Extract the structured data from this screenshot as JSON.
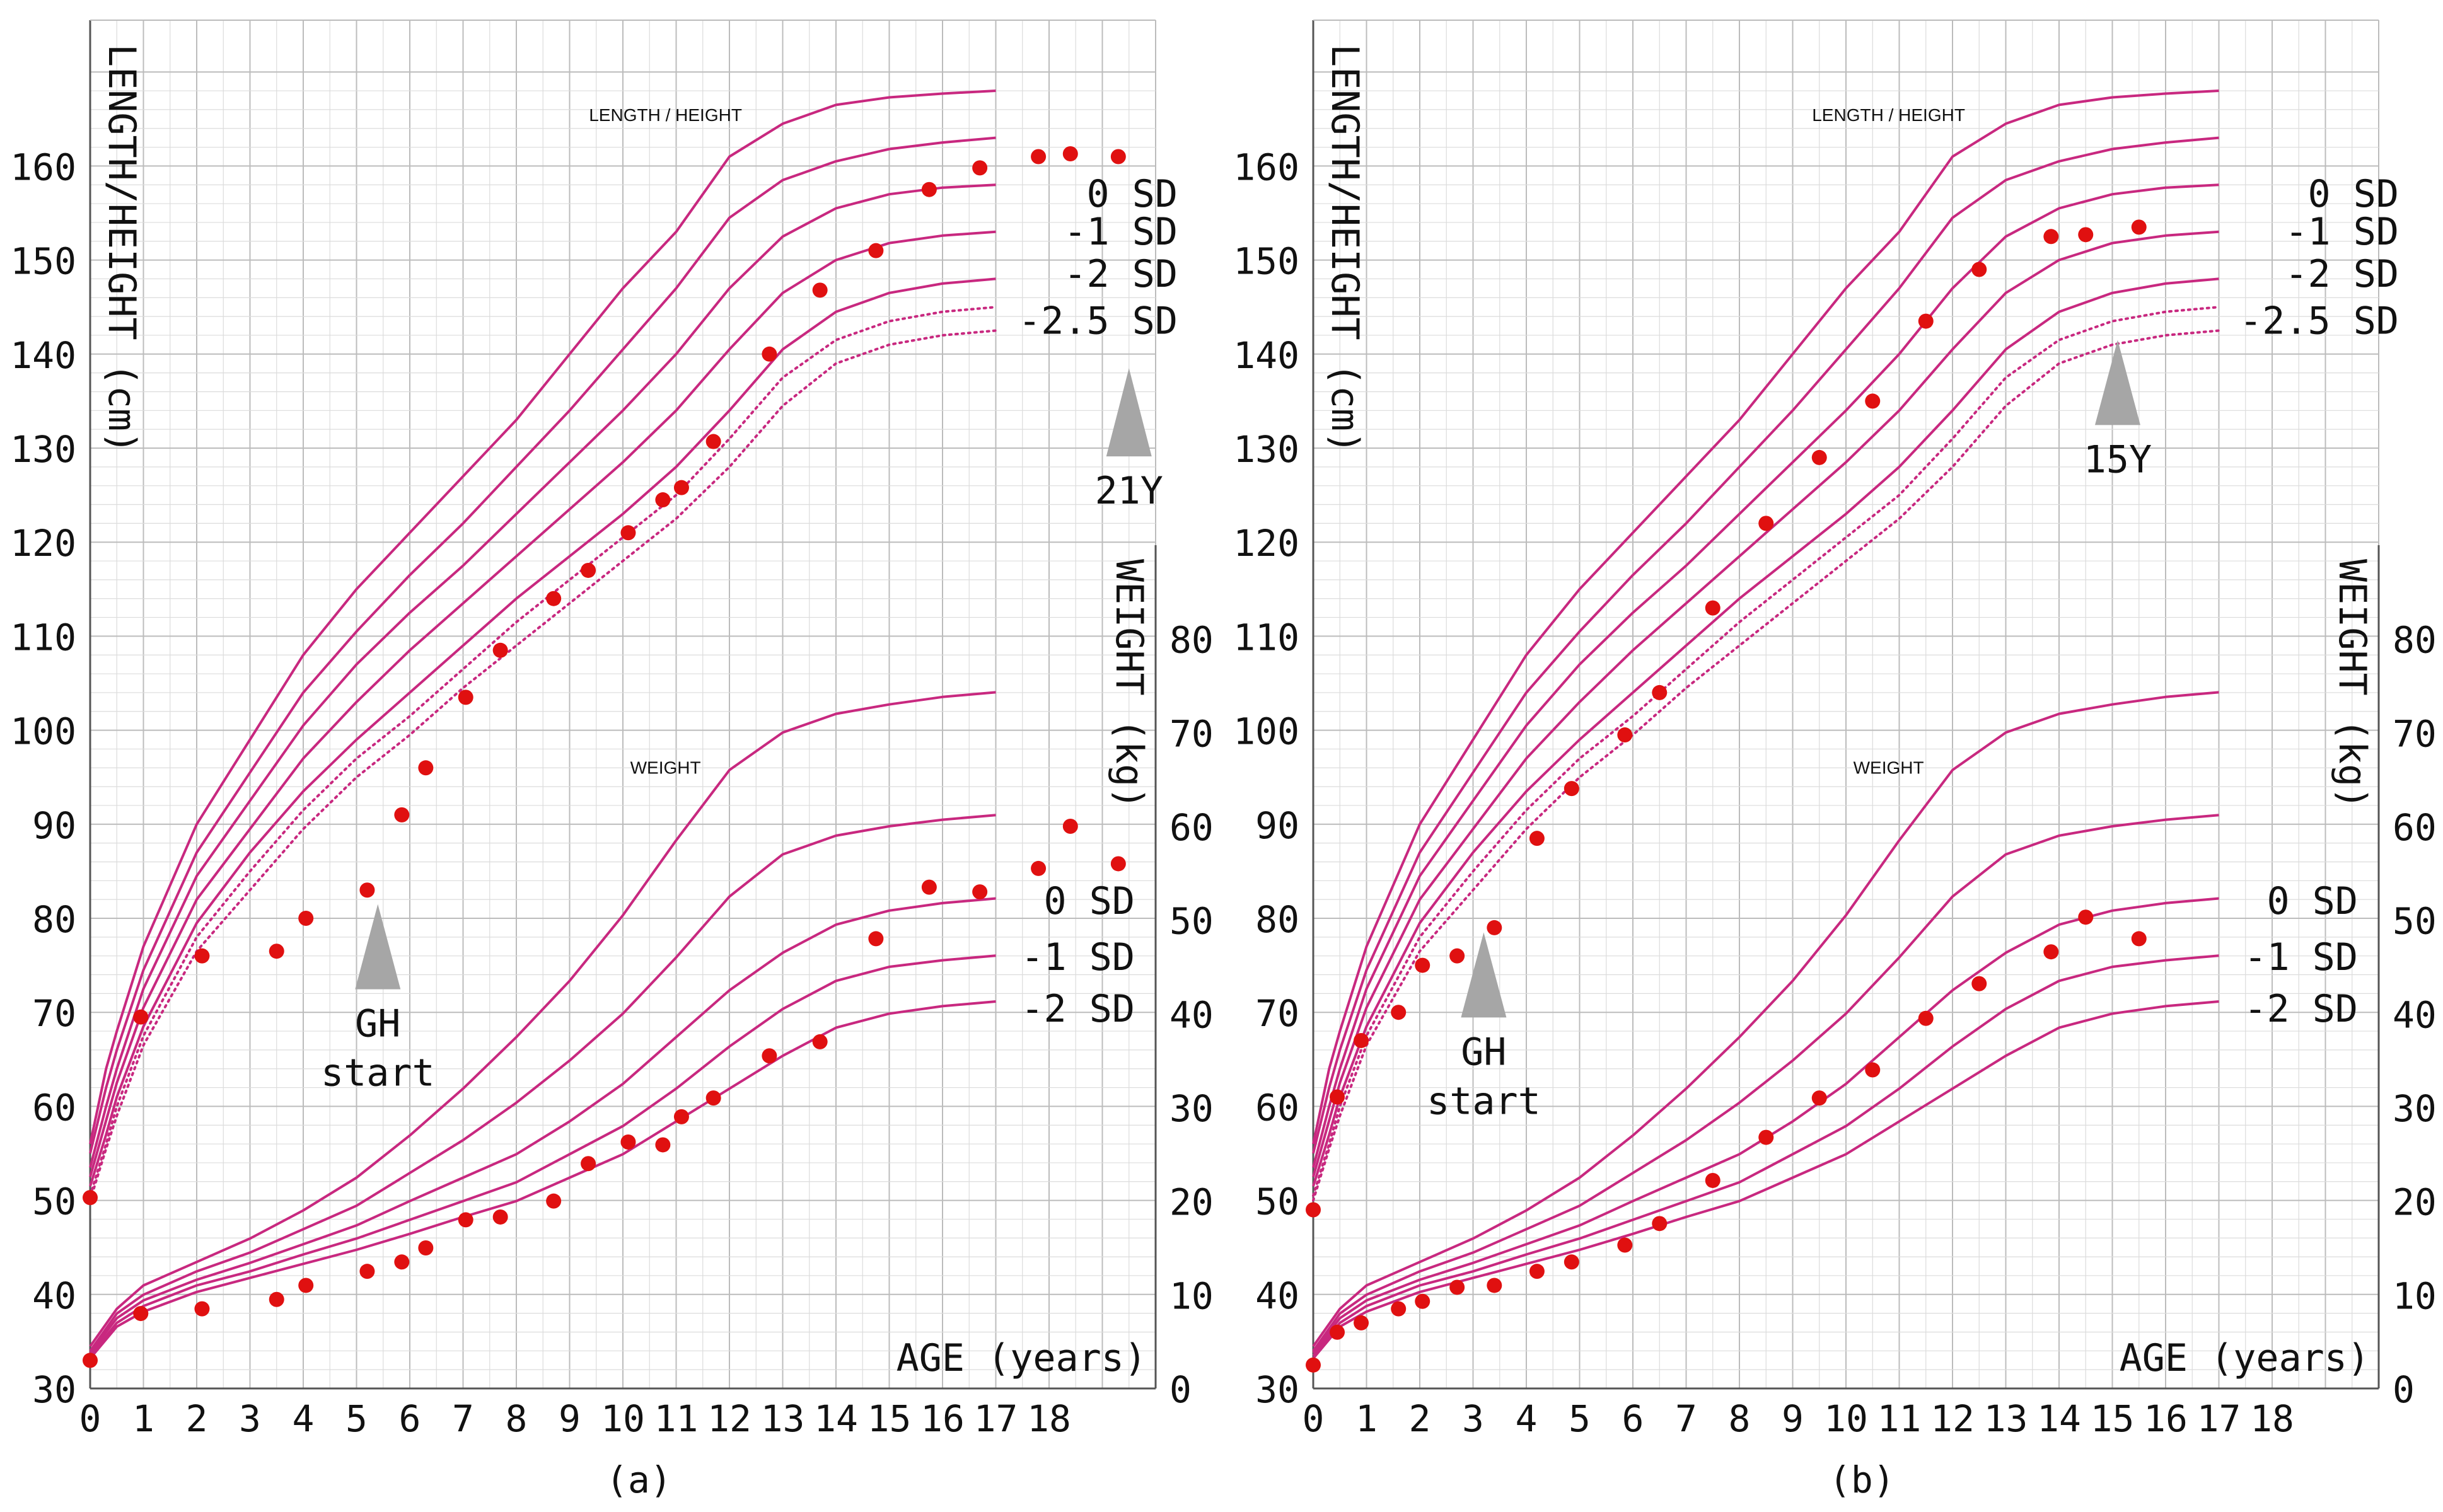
{
  "colors": {
    "curve": "#c8287f",
    "curve_dotted": "#c8287f",
    "point": "#e01010",
    "arrow": "#a6a6a6",
    "grid_major": "#bcbcbc",
    "grid_minor": "#dcdcdc",
    "text": "#111111"
  },
  "chart_data": [
    {
      "type": "scatter",
      "panel": "a",
      "caption": "(a)",
      "x_axis": {
        "label": "AGE (years)",
        "range": [
          0,
          20
        ],
        "ticks": [
          "0",
          "1",
          "2",
          "3",
          "4",
          "5",
          "6",
          "7",
          "8",
          "9",
          "10",
          "11",
          "12",
          "13",
          "14",
          "15",
          "16",
          "17",
          "18"
        ]
      },
      "height_axis": {
        "label": "LENGTH/HEIGHT (cm)",
        "range": [
          30,
          170
        ],
        "ticks": [
          "30",
          "40",
          "50",
          "60",
          "70",
          "80",
          "90",
          "100",
          "110",
          "120",
          "130",
          "140",
          "150",
          "160"
        ]
      },
      "weight_axis": {
        "label": "WEIGHT (kg)",
        "range": [
          0,
          90
        ],
        "ticks": [
          "0",
          "10",
          "20",
          "30",
          "40",
          "50",
          "60",
          "70",
          "80"
        ]
      },
      "height_chart_title": "LENGTH / HEIGHT",
      "weight_chart_title": "WEIGHT",
      "height_sd_labels": [
        "0 SD",
        "-1 SD",
        "-2 SD",
        "-2.5 SD"
      ],
      "weight_sd_labels": [
        "0 SD",
        "-1 SD",
        "-2 SD"
      ],
      "height_points": [
        [
          0,
          50.3
        ],
        [
          0.95,
          69.5
        ],
        [
          2.1,
          76
        ],
        [
          3.5,
          76.5
        ],
        [
          4.05,
          80
        ],
        [
          5.2,
          83
        ],
        [
          5.85,
          91
        ],
        [
          6.3,
          96
        ],
        [
          7.05,
          103.5
        ],
        [
          7.7,
          108.5
        ],
        [
          8.7,
          114
        ],
        [
          9.35,
          117
        ],
        [
          10.1,
          121
        ],
        [
          10.75,
          124.5
        ],
        [
          11.1,
          125.8
        ],
        [
          11.7,
          130.7
        ],
        [
          12.75,
          140
        ],
        [
          13.7,
          146.8
        ],
        [
          14.75,
          151
        ],
        [
          15.75,
          157.5
        ],
        [
          16.7,
          159.8
        ],
        [
          17.8,
          161
        ],
        [
          18.4,
          161.3
        ],
        [
          19.3,
          161
        ]
      ],
      "weight_points": [
        [
          0,
          3
        ],
        [
          0.95,
          8
        ],
        [
          2.1,
          8.5
        ],
        [
          3.5,
          9.5
        ],
        [
          4.05,
          11
        ],
        [
          5.2,
          12.5
        ],
        [
          5.85,
          13.5
        ],
        [
          6.3,
          15
        ],
        [
          7.05,
          18
        ],
        [
          7.7,
          18.3
        ],
        [
          8.7,
          20
        ],
        [
          9.35,
          24
        ],
        [
          10.1,
          26.3
        ],
        [
          10.75,
          26
        ],
        [
          11.1,
          29
        ],
        [
          11.7,
          31
        ],
        [
          12.75,
          35.5
        ],
        [
          13.7,
          37
        ],
        [
          14.75,
          48
        ],
        [
          15.75,
          53.5
        ],
        [
          16.7,
          53
        ],
        [
          17.8,
          55.5
        ],
        [
          18.4,
          60
        ],
        [
          19.3,
          56
        ]
      ],
      "annotations": [
        {
          "text_lines": [
            "GH",
            "start"
          ],
          "age": 5.4
        },
        {
          "text_lines": [
            "21Y"
          ],
          "age": 19.5
        }
      ]
    },
    {
      "type": "scatter",
      "panel": "b",
      "caption": "(b)",
      "x_axis": {
        "label": "AGE (years)",
        "range": [
          0,
          20
        ],
        "ticks": [
          "0",
          "1",
          "2",
          "3",
          "4",
          "5",
          "6",
          "7",
          "8",
          "9",
          "10",
          "11",
          "12",
          "13",
          "14",
          "15",
          "16",
          "17",
          "18"
        ]
      },
      "height_axis": {
        "label": "LENGTH/HEIGHT (cm)",
        "range": [
          30,
          170
        ],
        "ticks": [
          "30",
          "40",
          "50",
          "60",
          "70",
          "80",
          "90",
          "100",
          "110",
          "120",
          "130",
          "140",
          "150",
          "160"
        ]
      },
      "weight_axis": {
        "label": "WEIGHT (kg)",
        "range": [
          0,
          90
        ],
        "ticks": [
          "0",
          "10",
          "20",
          "30",
          "40",
          "50",
          "60",
          "70",
          "80"
        ]
      },
      "height_chart_title": "LENGTH / HEIGHT",
      "weight_chart_title": "WEIGHT",
      "height_sd_labels": [
        "0 SD",
        "-1 SD",
        "-2 SD",
        "-2.5 SD"
      ],
      "weight_sd_labels": [
        "0 SD",
        "-1 SD",
        "-2 SD"
      ],
      "height_points": [
        [
          0,
          49
        ],
        [
          0.45,
          61
        ],
        [
          0.9,
          67
        ],
        [
          1.6,
          70
        ],
        [
          2.05,
          75
        ],
        [
          2.7,
          76
        ],
        [
          3.4,
          79
        ],
        [
          4.2,
          88.5
        ],
        [
          4.85,
          93.8
        ],
        [
          5.85,
          99.5
        ],
        [
          6.5,
          104
        ],
        [
          7.5,
          113
        ],
        [
          8.5,
          122
        ],
        [
          9.5,
          129
        ],
        [
          10.5,
          135
        ],
        [
          11.5,
          143.5
        ],
        [
          12.5,
          149
        ],
        [
          13.85,
          152.5
        ],
        [
          14.5,
          152.7
        ],
        [
          15.5,
          153.5
        ]
      ],
      "weight_points": [
        [
          0,
          2.5
        ],
        [
          0.45,
          6
        ],
        [
          0.9,
          7
        ],
        [
          1.6,
          8.5
        ],
        [
          2.05,
          9.3
        ],
        [
          2.7,
          10.8
        ],
        [
          3.4,
          11
        ],
        [
          4.2,
          12.5
        ],
        [
          4.85,
          13.5
        ],
        [
          5.85,
          15.3
        ],
        [
          6.5,
          17.6
        ],
        [
          7.5,
          22.2
        ],
        [
          8.5,
          26.8
        ],
        [
          9.5,
          31
        ],
        [
          10.5,
          34
        ],
        [
          11.5,
          39.5
        ],
        [
          12.5,
          43.2
        ],
        [
          13.85,
          46.6
        ],
        [
          14.5,
          50.3
        ],
        [
          15.5,
          48
        ]
      ],
      "annotations": [
        {
          "text_lines": [
            "GH",
            "start"
          ],
          "age": 3.2
        },
        {
          "text_lines": [
            "15Y"
          ],
          "age": 15.1
        }
      ]
    }
  ]
}
